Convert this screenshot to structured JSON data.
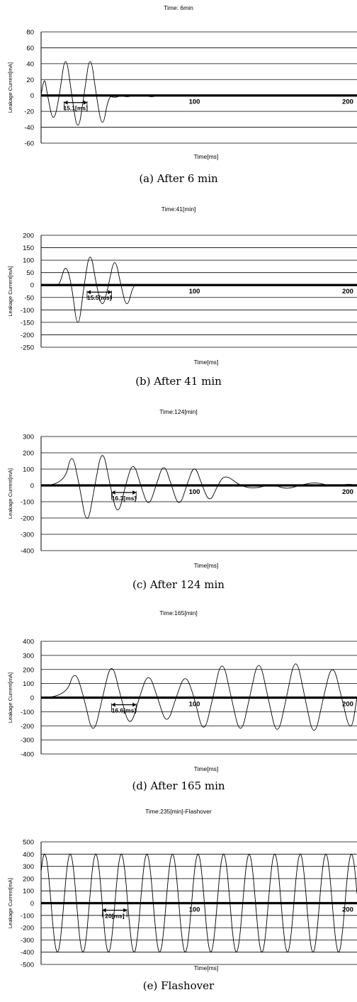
{
  "chart_data": [
    {
      "type": "line",
      "title": "Time: 6min",
      "xlabel": "Time[ms]",
      "ylabel": "Leakage Current[mA]",
      "caption": "(a) After 6 min",
      "ylim": [
        -60,
        80
      ],
      "y_ticks": [
        "80",
        "60",
        "40",
        "20",
        "0",
        "-20",
        "-40",
        "-60"
      ],
      "x_tick_labels": [
        {
          "x": 100,
          "label": "100"
        },
        {
          "x": 200,
          "label": "200"
        }
      ],
      "xlim": [
        0,
        206
      ],
      "grid": true,
      "annotation": {
        "label": "15.1[ms]",
        "x0": 15,
        "x1": 30
      },
      "series": [
        {
          "x": [
            0,
            2,
            4,
            8,
            12,
            16,
            20,
            24,
            28,
            32,
            36,
            40,
            44,
            48,
            52,
            56,
            60,
            64,
            68,
            72,
            76,
            80,
            90,
            100,
            110,
            120,
            130,
            140,
            150,
            160,
            170,
            180,
            190,
            200,
            206
          ],
          "y": [
            0,
            27,
            2,
            -37,
            0,
            57,
            0,
            -50,
            0,
            57,
            0,
            -45,
            0,
            -3,
            0,
            -2,
            0,
            -1,
            0,
            -2,
            0,
            -1,
            0,
            0,
            -1,
            0,
            -1,
            0,
            -1,
            0,
            0,
            -1,
            0,
            0,
            0
          ]
        }
      ]
    },
    {
      "type": "line",
      "title": "Time:41[min]",
      "xlabel": "Time[ms]",
      "ylabel": "Leakage Current[mA]",
      "caption": "(b) After 41 min",
      "ylim": [
        -250,
        200
      ],
      "y_ticks": [
        "200",
        "150",
        "100",
        "50",
        "0",
        "-50",
        "-100",
        "-150",
        "-200",
        "-250"
      ],
      "x_tick_labels": [
        {
          "x": 100,
          "label": "100"
        },
        {
          "x": 200,
          "label": "200"
        }
      ],
      "xlim": [
        0,
        206
      ],
      "grid": true,
      "annotation": {
        "label": "15.5[ms]",
        "x0": 30,
        "x1": 46
      },
      "series": [
        {
          "x": [
            0,
            8,
            12,
            16,
            20,
            24,
            28,
            32,
            36,
            40,
            44,
            48,
            52,
            56,
            60,
            64,
            68,
            76,
            90,
            100,
            120,
            140,
            160,
            180,
            206
          ],
          "y": [
            0,
            0,
            -3,
            90,
            0,
            -200,
            0,
            150,
            0,
            -100,
            0,
            120,
            0,
            -100,
            0,
            3,
            0,
            -2,
            0,
            0,
            -2,
            0,
            1,
            0,
            0
          ]
        }
      ]
    },
    {
      "type": "line",
      "title": "Time:124[min]",
      "xlabel": "Time[ms]",
      "ylabel": "Leakage Current[mA]",
      "caption": "(c) After 124 min",
      "ylim": [
        -400,
        300
      ],
      "y_ticks": [
        "300",
        "200",
        "100",
        "0",
        "-100",
        "-200",
        "-300",
        "-400"
      ],
      "x_tick_labels": [
        {
          "x": 100,
          "label": "100"
        },
        {
          "x": 200,
          "label": "200"
        }
      ],
      "xlim": [
        0,
        206
      ],
      "grid": true,
      "annotation": {
        "label": "16.3[ms]",
        "x0": 46,
        "x1": 62
      },
      "series": [
        {
          "x": [
            0,
            15,
            20,
            25,
            30,
            35,
            40,
            45,
            50,
            55,
            60,
            65,
            70,
            75,
            80,
            85,
            90,
            95,
            100,
            105,
            110,
            115,
            120,
            130,
            140,
            150,
            160,
            170,
            180,
            190,
            200,
            206
          ],
          "y": [
            0,
            -5,
            220,
            0,
            -270,
            0,
            245,
            0,
            -200,
            0,
            155,
            0,
            -140,
            0,
            145,
            0,
            -140,
            0,
            135,
            0,
            -110,
            0,
            70,
            -5,
            -20,
            10,
            -25,
            5,
            20,
            -10,
            10,
            0
          ]
        }
      ]
    },
    {
      "type": "line",
      "title": "Time:165[min]",
      "xlabel": "Time[ms]",
      "ylabel": "Leakage Current[mA]",
      "caption": "(d) After 165 min",
      "ylim": [
        -400,
        400
      ],
      "y_ticks": [
        "400",
        "300",
        "200",
        "100",
        "0",
        "-100",
        "-200",
        "-300",
        "-400"
      ],
      "x_tick_labels": [
        {
          "x": 100,
          "label": "100"
        },
        {
          "x": 200,
          "label": "200"
        }
      ],
      "xlim": [
        0,
        206
      ],
      "grid": true,
      "annotation": {
        "label": "16.6[ms]",
        "x0": 46,
        "x1": 62
      },
      "series": [
        {
          "x": [
            0,
            16,
            22,
            28,
            34,
            40,
            46,
            52,
            58,
            64,
            70,
            76,
            82,
            88,
            94,
            100,
            106,
            112,
            118,
            124,
            130,
            136,
            142,
            148,
            154,
            160,
            166,
            172,
            178,
            184,
            190,
            196,
            202,
            206
          ],
          "y": [
            0,
            0,
            210,
            0,
            -290,
            0,
            275,
            0,
            -225,
            0,
            190,
            0,
            -205,
            0,
            180,
            0,
            -280,
            0,
            300,
            0,
            -290,
            0,
            305,
            0,
            -300,
            0,
            320,
            0,
            -310,
            0,
            265,
            0,
            -270,
            0
          ]
        }
      ]
    },
    {
      "type": "line",
      "title": "Time:235[min]-Flashover",
      "xlabel": "Time[ms]",
      "ylabel": "Leakage Current[mA]",
      "caption": "(e) Flashover",
      "ylim": [
        -500,
        500
      ],
      "y_ticks": [
        "500",
        "400",
        "300",
        "200",
        "100",
        "0",
        "-100",
        "-200",
        "-300",
        "-400",
        "-500"
      ],
      "x_tick_labels": [
        {
          "x": 100,
          "label": "100"
        },
        {
          "x": 200,
          "label": "200"
        }
      ],
      "xlim": [
        0,
        206
      ],
      "grid": true,
      "annotation": {
        "label": "20[ms]",
        "x0": 40,
        "x1": 56
      },
      "sine": {
        "amplitude": 400,
        "period_ms": 16.67,
        "phase": 0.7
      }
    }
  ]
}
